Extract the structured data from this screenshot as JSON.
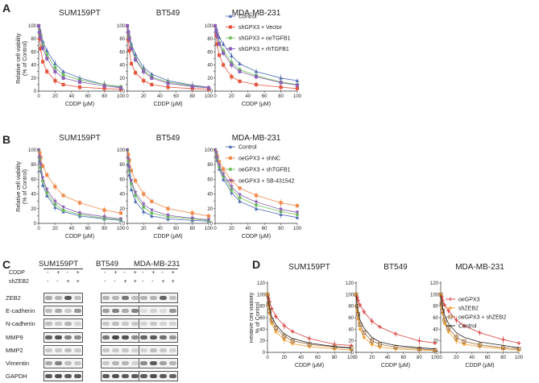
{
  "panels": {
    "A": "A",
    "B": "B",
    "C": "C",
    "D": "D"
  },
  "colors": {
    "control": "#4a68b0",
    "red": "#e5533c",
    "orange": "#ef8a4a",
    "green": "#6cbf58",
    "purple": "#8b5fb4",
    "d_red": "#d83a3a",
    "d_blue": "#3b5fb0",
    "d_orange": "#f0a030",
    "d_brown": "#a07040",
    "d_black": "#222222"
  },
  "chart_data": [
    {
      "id": "A",
      "type": "line",
      "subplots": [
        "SUM159PT",
        "BT549",
        "MDA-MB-231"
      ],
      "xlabel": "CDDP (μM)",
      "ylabel": [
        "Relative cell viability",
        "(% of Control)"
      ],
      "xlim": [
        0,
        100
      ],
      "ylim": [
        0,
        100
      ],
      "xticks": [
        0,
        20,
        40,
        60,
        80,
        100
      ],
      "yticks": [
        0,
        10,
        20,
        30,
        40,
        50,
        60,
        70,
        80,
        90,
        100
      ],
      "yticklabels": [
        "0",
        "",
        "20",
        "",
        "40",
        "",
        "60",
        "",
        "80",
        "",
        "100"
      ],
      "x": [
        0,
        1.25,
        2.5,
        5,
        10,
        20,
        30,
        50,
        80,
        100
      ],
      "series": [
        {
          "name": "Control",
          "color": "control",
          "marker": "triangle",
          "values": [
            [
              100,
              95,
              88,
              76,
              62,
              42,
              30,
              20,
              10,
              6
            ],
            [
              100,
              93,
              85,
              72,
              56,
              36,
              26,
              16,
              9,
              6
            ],
            [
              100,
              96,
              90,
              82,
              72,
              54,
              42,
              30,
              20,
              16
            ]
          ]
        },
        {
          "name": "shGPX3 + Vector",
          "color": "red",
          "marker": "square",
          "values": [
            [
              100,
              80,
              65,
              45,
              30,
              16,
              10,
              6,
              4,
              3
            ],
            [
              100,
              78,
              62,
              42,
              28,
              16,
              10,
              6,
              4,
              3
            ],
            [
              100,
              85,
              72,
              55,
              40,
              22,
              15,
              10,
              6,
              4
            ]
          ]
        },
        {
          "name": "shGPX3 + oeTGFB1",
          "color": "green",
          "marker": "circle",
          "values": [
            [
              100,
              92,
              85,
              70,
              56,
              36,
              25,
              17,
              10,
              7
            ],
            [
              100,
              90,
              82,
              68,
              50,
              32,
              22,
              14,
              8,
              5
            ],
            [
              100,
              92,
              86,
              74,
              62,
              44,
              33,
              24,
              14,
              10
            ]
          ]
        },
        {
          "name": "shGPX3 + rhTGFB1",
          "color": "purple",
          "marker": "square",
          "values": [
            [
              100,
              90,
              82,
              66,
              50,
              30,
              20,
              14,
              8,
              5
            ],
            [
              100,
              90,
              80,
              65,
              48,
              30,
              20,
              12,
              7,
              5
            ],
            [
              100,
              92,
              85,
              72,
              58,
              40,
              30,
              22,
              13,
              9
            ]
          ]
        }
      ]
    },
    {
      "id": "B",
      "type": "line",
      "subplots": [
        "SUM159PT",
        "BT549",
        "MDA-MB-231"
      ],
      "xlabel": "CDDP (μM)",
      "ylabel": [
        "Relative cell viability",
        "(% of Control)"
      ],
      "xlim": [
        0,
        100
      ],
      "ylim": [
        0,
        100
      ],
      "xticks": [
        0,
        20,
        40,
        60,
        80,
        100
      ],
      "yticks": [
        0,
        10,
        20,
        30,
        40,
        50,
        60,
        70,
        80,
        90,
        100
      ],
      "yticklabels": [
        "0",
        "",
        "20",
        "",
        "40",
        "",
        "60",
        "",
        "80",
        "",
        "100"
      ],
      "x": [
        0,
        1.25,
        2.5,
        5,
        10,
        20,
        30,
        50,
        80,
        100
      ],
      "series": [
        {
          "name": "Control",
          "color": "control",
          "marker": "triangle",
          "values": [
            [
              100,
              85,
              72,
              52,
              38,
              22,
              16,
              10,
              6,
              4
            ],
            [
              100,
              80,
              66,
              46,
              30,
              16,
              10,
              6,
              4,
              3
            ],
            [
              100,
              94,
              86,
              74,
              60,
              42,
              30,
              20,
              12,
              8
            ]
          ]
        },
        {
          "name": "oeGPX3 + shNC",
          "color": "orange",
          "marker": "square",
          "values": [
            [
              100,
              96,
              90,
              78,
              66,
              50,
              38,
              28,
              18,
              14
            ],
            [
              100,
              94,
              86,
              72,
              58,
              40,
              30,
              20,
              14,
              10
            ],
            [
              100,
              97,
              92,
              84,
              74,
              58,
              48,
              38,
              28,
              24
            ]
          ]
        },
        {
          "name": "oeGPX3 + shTGFB1",
          "color": "green",
          "marker": "circle",
          "values": [
            [
              100,
              88,
              76,
              58,
              42,
              26,
              18,
              12,
              7,
              5
            ],
            [
              100,
              85,
              72,
              54,
              38,
              22,
              14,
              9,
              6,
              4
            ],
            [
              100,
              95,
              88,
              77,
              64,
              46,
              35,
              25,
              16,
              12
            ]
          ]
        },
        {
          "name": "oeGPX3 + SB-431542",
          "color": "purple",
          "marker": "triangle-down",
          "values": [
            [
              100,
              90,
              80,
              62,
              46,
              30,
              22,
              14,
              9,
              6
            ],
            [
              100,
              88,
              76,
              58,
              42,
              26,
              18,
              11,
              7,
              5
            ],
            [
              100,
              96,
              89,
              79,
              67,
              50,
              39,
              29,
              19,
              15
            ]
          ]
        }
      ]
    },
    {
      "id": "D",
      "type": "line",
      "subplots": [
        "SUM159PT",
        "BT549",
        "MDA-MB-231"
      ],
      "xlabel": "CDDP (μM)",
      "ylabel": [
        "Relative cell viability",
        "% of Control"
      ],
      "xlim": [
        0,
        100
      ],
      "ylim": [
        0,
        120
      ],
      "xticks": [
        0,
        20,
        40,
        60,
        80,
        100
      ],
      "yticks": [
        0,
        20,
        40,
        60,
        80,
        100,
        120
      ],
      "yticklabels": [
        "0",
        "20",
        "40",
        "60",
        "80",
        "100",
        "120"
      ],
      "x": [
        0,
        1.25,
        2.5,
        5,
        10,
        20,
        30,
        50,
        80,
        100
      ],
      "series": [
        {
          "name": "oeGPX3",
          "color": "d_red",
          "marker": "plus",
          "values": [
            [
              100,
              94,
              88,
              76,
              62,
              46,
              36,
              24,
              14,
              12
            ],
            [
              100,
              95,
              90,
              82,
              70,
              54,
              44,
              32,
              20,
              16
            ],
            [
              100,
              96,
              90,
              82,
              72,
              56,
              46,
              34,
              22,
              16
            ]
          ]
        },
        {
          "name": "shZEB2",
          "color": "d_orange",
          "marker": "diamond",
          "values": [
            [
              100,
              80,
              68,
              50,
              36,
              22,
              15,
              10,
              6,
              4
            ],
            [
              100,
              72,
              58,
              40,
              26,
              14,
              9,
              6,
              4,
              3
            ],
            [
              100,
              80,
              68,
              50,
              36,
              20,
              14,
              10,
              6,
              4
            ]
          ]
        },
        {
          "name": "oeGPX3 + shZEB2",
          "color": "d_brown",
          "marker": "square-open",
          "values": [
            [
              100,
              84,
              72,
              56,
              42,
              28,
              20,
              14,
              9,
              7
            ],
            [
              100,
              80,
              66,
              48,
              34,
              20,
              14,
              9,
              6,
              4
            ],
            [
              100,
              84,
              72,
              56,
              42,
              26,
              19,
              13,
              8,
              6
            ]
          ]
        },
        {
          "name": "Control",
          "color": "d_black",
          "marker": "none",
          "values": [
            [
              100,
              88,
              78,
              62,
              48,
              32,
              24,
              16,
              10,
              8
            ],
            [
              100,
              84,
              72,
              56,
              42,
              26,
              18,
              12,
              8,
              6
            ],
            [
              100,
              88,
              78,
              64,
              50,
              34,
              26,
              18,
              12,
              8
            ]
          ]
        }
      ]
    }
  ],
  "western_blot": {
    "cell_lines": [
      "SUM159PT",
      "BT549",
      "MDA-MB-231"
    ],
    "cddp_label": "CDDP",
    "shzeb2_label": "shZEB2",
    "cddp": [
      "-",
      "+",
      "-",
      "+"
    ],
    "shzeb2": [
      "-",
      "-",
      "+",
      "+"
    ],
    "proteins": [
      "ZEB2",
      "E-cadherin",
      "N-cadherin",
      "MMP9",
      "MMP2",
      "Vimentin",
      "GAPDH"
    ],
    "intensities": [
      [
        [
          0.35,
          0.3,
          0.75,
          0.25
        ],
        [
          0.3,
          0.3,
          0.6,
          0.25
        ],
        [
          0.3,
          0.3,
          0.7,
          0.25
        ]
      ],
      [
        [
          0.25,
          0.35,
          0.2,
          0.45
        ],
        [
          0.4,
          0.55,
          0.35,
          0.55
        ],
        [
          0.1,
          0.15,
          0.1,
          0.45
        ]
      ],
      [
        [
          0.25,
          0.2,
          0.3,
          0.15
        ],
        [
          0.2,
          0.25,
          0.2,
          0.2
        ],
        [
          0.15,
          0.2,
          0.15,
          0.15
        ]
      ],
      [
        [
          0.7,
          0.8,
          0.55,
          0.5
        ],
        [
          0.6,
          0.85,
          0.8,
          0.5
        ],
        [
          0.7,
          0.75,
          0.65,
          0.45
        ]
      ],
      [
        [
          0.2,
          0.2,
          0.25,
          0.2
        ],
        [
          0.2,
          0.2,
          0.2,
          0.15
        ],
        [
          0.15,
          0.25,
          0.2,
          0.15
        ]
      ],
      [
        [
          0.35,
          0.55,
          0.25,
          0.2
        ],
        [
          0.2,
          0.3,
          0.3,
          0.15
        ],
        [
          0.5,
          0.75,
          0.4,
          0.3
        ]
      ],
      [
        [
          0.75,
          0.8,
          0.75,
          0.75
        ],
        [
          0.75,
          0.8,
          0.75,
          0.75
        ],
        [
          0.75,
          0.8,
          0.75,
          0.7
        ]
      ]
    ]
  }
}
